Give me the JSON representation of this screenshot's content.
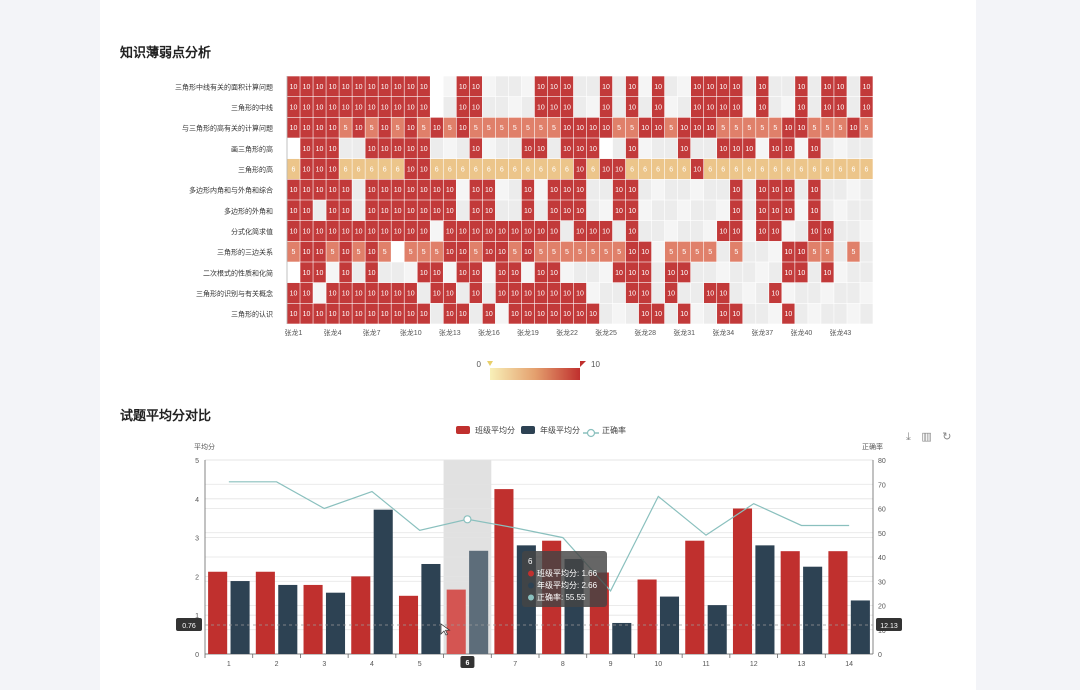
{
  "sections": {
    "heatmap_title": "知识薄弱点分析",
    "bar_title": "试题平均分对比"
  },
  "visual_map": {
    "min_label": "0",
    "max_label": "10"
  },
  "toolbox": {
    "icons": [
      "line-switch-icon",
      "bar-switch-icon",
      "restore-icon"
    ]
  },
  "colors": {
    "bar_class": "#c0302e",
    "bar_grade": "#2d4253",
    "line": "#8ac0be",
    "cell_high": "#c23a3a",
    "cell_mid": "#e0806a",
    "cell_low": "#ecc58a",
    "cell_empty_a": "#ececec",
    "cell_empty_b": "#f5f5f5"
  },
  "heatmap_data": {
    "type": "heatmap",
    "y_categories": [
      "三角形中线有关的面积计算问题",
      "三角形的中线",
      "与三角形的高有关的计算问题",
      "画三角形的高",
      "三角形的高",
      "多边形内角和与外角和综合",
      "多边形的外角和",
      "分式化简求值",
      "三角形的三边关系",
      "二次根式的性质和化简",
      "三角形的识别与有关概念",
      "三角形的认识"
    ],
    "x_tick_labels": [
      "张龙1",
      "张龙4",
      "张龙7",
      "张龙10",
      "张龙13",
      "张龙16",
      "张龙19",
      "张龙22",
      "张龙25",
      "张龙28",
      "张龙31",
      "张龙34",
      "张龙37",
      "张龙40",
      "张龙43"
    ],
    "x_count": 45,
    "rows": [
      "AAAAAAAAAAA_.AA....AAA..A.A.A..AAAA.A..A.AA.A",
      "AAAAAAAAAAA_.AA....AAA..A.A.A..AAAA.A..A.AA.A",
      "AAAAMAMAMAMAMAMMMMMMMAAAAMMAAMAAAMMMMMAAMMMAMA",
      "_AAA..AAAAA...A...AA.AAA_.A...A..AAA.AA.A...",
      "LAAALLLLLAALLLLLLLLLLLALAALLLLLALLLLLLLLLLLLLL",
      "AAAAA.AAAAAAA.AA..A.AAA..AA.......A.AAA.A....",
      "AA.AA.AAAAAAA.AA..A.AAA..AA.......A.AAA.A....",
      "AAAAAAAAAAA.AAAAAAAAA.AAA.A......AA.AA..AA...",
      "MAAMAMAM_MMMAAMAAMAMMMMMMMAA.MMMM.M...AAMM.M.",
      "_AA.A.A...AA.AA.AA.AA....AAA.AA.......AA.A...",
      "AA.AAAAAAA.AA.A.AAAAAAA...AA.A..AA...A.......",
      "AAAAAAAAAAA.AA.A.AAAAAAA...AA.A..AA...A......."
    ],
    "legend_values": {
      "A": 10,
      "M": 5,
      "L": 6
    },
    "visual_range": [
      0,
      10
    ]
  },
  "chart_data": {
    "type": "bar",
    "categories": [
      "1",
      "2",
      "3",
      "4",
      "5",
      "6",
      "7",
      "8",
      "9",
      "10",
      "11",
      "12",
      "13",
      "14"
    ],
    "legend": [
      "班级平均分",
      "年级平均分",
      "正确率"
    ],
    "y_left_name": "平均分",
    "y_right_name": "正确率",
    "y_left_ticks": [
      "0",
      "1",
      "2",
      "3",
      "4",
      "5"
    ],
    "y_right_ticks": [
      "0",
      "10",
      "20",
      "30",
      "40",
      "50",
      "60",
      "70",
      "80"
    ],
    "y_left_range": [
      0,
      5
    ],
    "y_right_range": [
      0,
      80
    ],
    "series": [
      {
        "name": "班级平均分",
        "type": "bar",
        "values": [
          2.12,
          2.12,
          1.78,
          2.0,
          1.5,
          1.66,
          4.25,
          2.92,
          2.1,
          1.92,
          2.92,
          3.75,
          2.65,
          2.65
        ]
      },
      {
        "name": "年级平均分",
        "type": "bar",
        "values": [
          1.88,
          1.78,
          1.58,
          3.72,
          2.32,
          2.66,
          2.8,
          2.45,
          0.8,
          1.48,
          1.26,
          2.8,
          2.25,
          1.38
        ]
      },
      {
        "name": "正确率",
        "type": "line",
        "y_axis": "right",
        "values": [
          71,
          71,
          60,
          67,
          51,
          55.55,
          52,
          48,
          26,
          65,
          49,
          62,
          53,
          53
        ]
      }
    ],
    "highlight_index": 5,
    "axis_pointer": {
      "left_label": "0.76",
      "right_label": "12.13",
      "x_label": "6"
    },
    "tooltip": {
      "title": "6",
      "lines": [
        "班级平均分: 1.66",
        "年级平均分: 2.66",
        "正确率: 55.55"
      ]
    }
  }
}
